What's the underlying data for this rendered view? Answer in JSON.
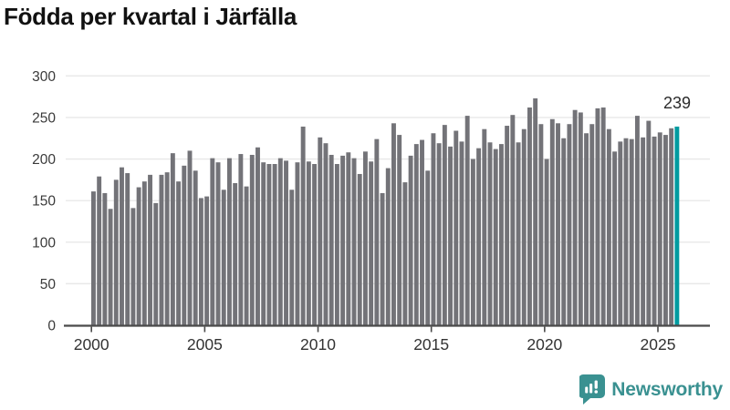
{
  "title": "Födda per kvartal i Järfälla",
  "annotation": {
    "label": "239"
  },
  "footer": {
    "brand": "Newsworthy"
  },
  "colors": {
    "bar": "#737378",
    "highlight": "#009ba0",
    "gridline": "#e8e8e8",
    "axis_line": "#4a4a4a",
    "axis_text": "#3a3a3a",
    "title_text": "#111111",
    "brand_teal": "#3a9191"
  },
  "chart_data": {
    "type": "bar",
    "title": "Födda per kvartal i Järfälla",
    "xlabel": "",
    "ylabel": "",
    "ylim": [
      0,
      300
    ],
    "y_ticks": [
      0,
      50,
      100,
      150,
      200,
      250,
      300
    ],
    "x_tick_years": [
      2000,
      2005,
      2010,
      2015,
      2020,
      2025
    ],
    "grid": "horizontal",
    "legend": "none",
    "start_period": "2000-Q1",
    "end_period": "2025-Q4",
    "highlight_last": true,
    "last_value_label": 239,
    "values": [
      161,
      179,
      159,
      140,
      175,
      190,
      183,
      141,
      166,
      173,
      181,
      147,
      181,
      184,
      207,
      173,
      192,
      210,
      186,
      153,
      155,
      201,
      196,
      163,
      201,
      171,
      206,
      167,
      205,
      214,
      196,
      194,
      194,
      201,
      198,
      163,
      196,
      239,
      197,
      194,
      226,
      219,
      205,
      194,
      204,
      208,
      201,
      182,
      209,
      197,
      224,
      159,
      189,
      243,
      229,
      172,
      204,
      218,
      223,
      186,
      231,
      219,
      241,
      215,
      234,
      221,
      252,
      200,
      213,
      236,
      220,
      212,
      218,
      240,
      253,
      220,
      236,
      262,
      273,
      242,
      200,
      248,
      243,
      225,
      242,
      259,
      256,
      231,
      242,
      261,
      262,
      236,
      209,
      221,
      225,
      224,
      252,
      226,
      246,
      227,
      232,
      229,
      237,
      239
    ]
  }
}
